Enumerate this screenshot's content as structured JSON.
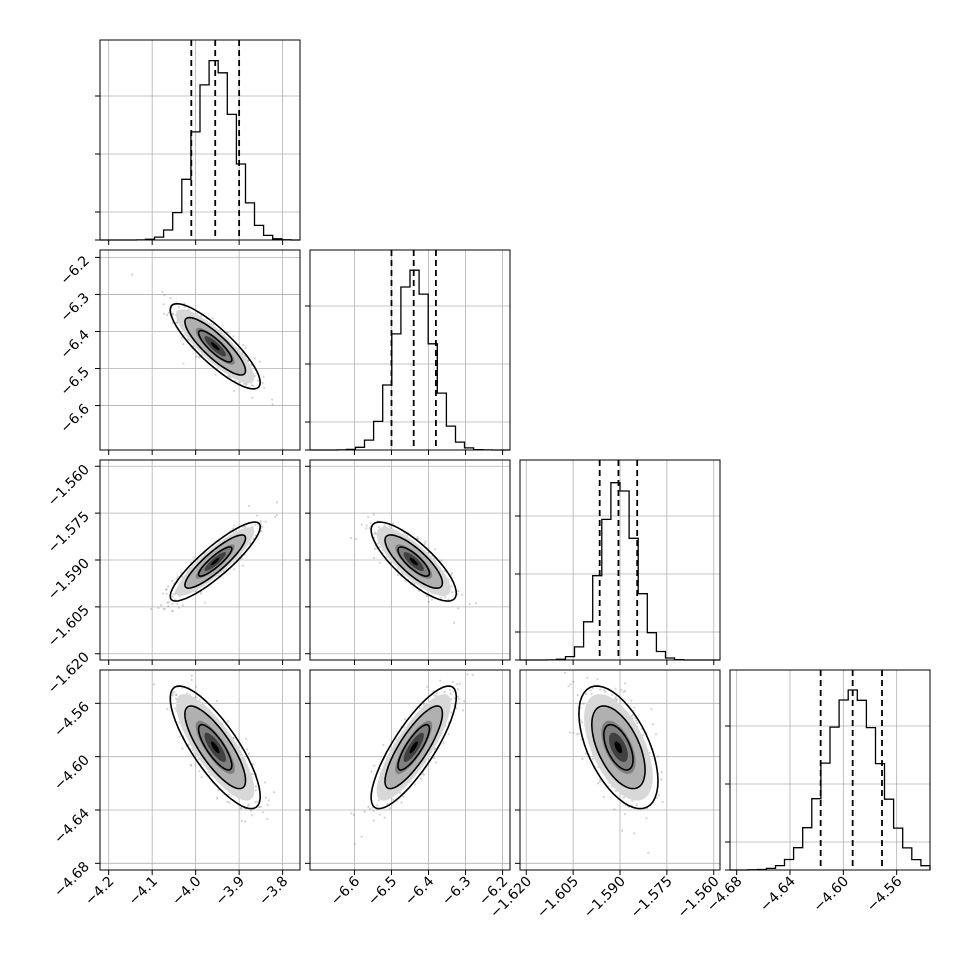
{
  "chart_data": {
    "type": "corner",
    "title": "",
    "parameters": [
      {
        "label": "",
        "range": [
          -4.22,
          -3.76
        ],
        "ticks": [
          -4.2,
          -4.1,
          -4.0,
          -3.9,
          -3.8
        ],
        "tick_labels": [
          "−4.2",
          "−4.1",
          "−4.0",
          "−3.9",
          "−3.8"
        ],
        "quantiles": [
          -4.01,
          -3.955,
          -3.9
        ],
        "hist_peak": -3.955,
        "hist_width": 0.045
      },
      {
        "label": "",
        "range": [
          -6.72,
          -6.18
        ],
        "ticks": [
          -6.6,
          -6.5,
          -6.4,
          -6.3,
          -6.2
        ],
        "tick_labels": [
          "−6.6",
          "−6.5",
          "−6.4",
          "−6.3",
          "−6.2"
        ],
        "left_tick_labels": [
          "−6.2",
          "−6.3",
          "−6.4",
          "−6.5",
          "−6.6"
        ],
        "quantiles": [
          -6.5,
          -6.44,
          -6.38
        ],
        "hist_peak": -6.44,
        "hist_width": 0.05
      },
      {
        "label": "",
        "range": [
          -1.622,
          -1.558
        ],
        "ticks": [
          -1.62,
          -1.605,
          -1.59,
          -1.575,
          -1.56
        ],
        "tick_labels": [
          "−1.620",
          "−1.605",
          "−1.590",
          "−1.575",
          "−1.560"
        ],
        "left_tick_labels": [
          "−1.560",
          "−1.575",
          "−1.590",
          "−1.605",
          "−1.620"
        ],
        "quantiles": [
          -1.5965,
          -1.5905,
          -1.5845
        ],
        "hist_peak": -1.5905,
        "hist_width": 0.0055
      },
      {
        "label": "",
        "range": [
          -4.685,
          -4.535
        ],
        "ticks": [
          -4.68,
          -4.64,
          -4.6,
          -4.56
        ],
        "tick_labels": [
          "−4.68",
          "−4.64",
          "−4.60",
          "−4.56"
        ],
        "left_tick_labels": [
          "−4.56",
          "−4.60",
          "−4.64",
          "−4.68"
        ],
        "quantiles": [
          -4.617,
          -4.593,
          -4.571
        ],
        "hist_peak": -4.593,
        "hist_width": 0.02
      }
    ],
    "pairs": [
      {
        "row": 1,
        "col": 0,
        "center": [
          -3.955,
          -6.44
        ],
        "correlation": -0.85
      },
      {
        "row": 2,
        "col": 0,
        "center": [
          -3.955,
          -1.5905
        ],
        "correlation": 0.88
      },
      {
        "row": 2,
        "col": 1,
        "center": [
          -6.44,
          -1.5905
        ],
        "correlation": -0.8
      },
      {
        "row": 3,
        "col": 0,
        "center": [
          -3.955,
          -4.593
        ],
        "correlation": -0.8
      },
      {
        "row": 3,
        "col": 1,
        "center": [
          -6.44,
          -4.593
        ],
        "correlation": 0.82
      },
      {
        "row": 3,
        "col": 2,
        "center": [
          -1.5905,
          -4.593
        ],
        "correlation": -0.55
      }
    ],
    "grid": true,
    "colors": {
      "ink": "#000000",
      "grid": "#b0b0b0",
      "points": "#808080"
    }
  }
}
